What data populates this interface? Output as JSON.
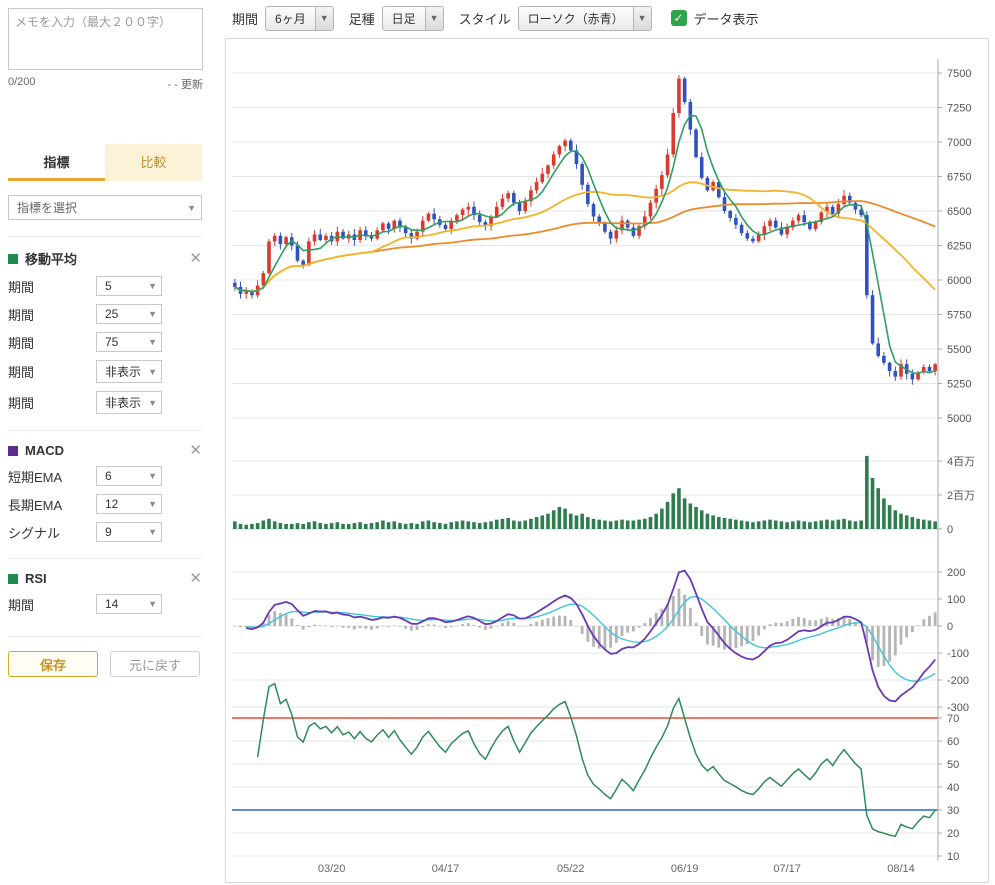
{
  "sidebar": {
    "memo": {
      "placeholder": "メモを入力（最大２００字）",
      "counter": "0/200",
      "update_label": "- - 更新"
    },
    "tabs": [
      {
        "label": "指標",
        "active": true
      },
      {
        "label": "比較",
        "active": false
      }
    ],
    "indicator_select_placeholder": "指標を選択",
    "sections": [
      {
        "name": "移動平均",
        "color": "#1f8a4c",
        "rows": [
          {
            "label": "期間",
            "value": "5"
          },
          {
            "label": "期間",
            "value": "25"
          },
          {
            "label": "期間",
            "value": "75"
          },
          {
            "label": "期間",
            "value": "非表示"
          },
          {
            "label": "期間",
            "value": "非表示"
          }
        ]
      },
      {
        "name": "MACD",
        "color": "#5b2d8e",
        "rows": [
          {
            "label": "短期EMA",
            "value": "6"
          },
          {
            "label": "長期EMA",
            "value": "12"
          },
          {
            "label": "シグナル",
            "value": "9"
          }
        ]
      },
      {
        "name": "RSI",
        "color": "#1f8a4c",
        "rows": [
          {
            "label": "期間",
            "value": "14"
          }
        ]
      }
    ],
    "save_button": "保存",
    "reset_button": "元に戻す"
  },
  "toolbar": {
    "period_label": "期間",
    "period_value": "6ヶ月",
    "type_label": "足種",
    "type_value": "日足",
    "style_label": "スタイル",
    "style_value": "ローソク（赤青）",
    "data_display_label": "データ表示",
    "data_display_checked": true
  },
  "chart_data": {
    "type": "candlestick",
    "panels": [
      "price+moving-averages",
      "volume",
      "macd",
      "rsi"
    ],
    "x_ticks": [
      {
        "label": "03/20",
        "index": 17
      },
      {
        "label": "04/17",
        "index": 37
      },
      {
        "label": "05/22",
        "index": 59
      },
      {
        "label": "06/19",
        "index": 79
      },
      {
        "label": "07/17",
        "index": 97
      },
      {
        "label": "08/14",
        "index": 117
      }
    ],
    "price_axis": {
      "min": 5000,
      "max": 7600,
      "ticks": [
        7500,
        7250,
        7000,
        6750,
        6500,
        6250,
        6000,
        5750,
        5500,
        5250,
        5000
      ]
    },
    "volume_axis_labels": [
      {
        "label": "4百万",
        "value": 4
      },
      {
        "label": "2百万",
        "value": 2
      },
      {
        "label": "0",
        "value": 0
      }
    ],
    "macd_axis_ticks": [
      200,
      100,
      0,
      -100,
      -200,
      -300
    ],
    "rsi_axis_ticks": [
      70,
      60,
      50,
      40,
      30,
      20,
      10
    ],
    "rsi_bands": {
      "upper": 70,
      "lower": 30
    },
    "indicators": {
      "ma_periods": [
        5,
        25,
        75
      ],
      "macd": {
        "fast": 6,
        "slow": 12,
        "signal": 9
      },
      "rsi_period": 14
    },
    "closes": [
      5950,
      5900,
      5920,
      5890,
      5960,
      6050,
      6280,
      6320,
      6260,
      6310,
      6250,
      6140,
      6110,
      6280,
      6330,
      6290,
      6320,
      6280,
      6350,
      6300,
      6330,
      6290,
      6360,
      6320,
      6300,
      6360,
      6410,
      6370,
      6430,
      6380,
      6340,
      6300,
      6350,
      6430,
      6480,
      6440,
      6400,
      6370,
      6430,
      6470,
      6510,
      6530,
      6470,
      6420,
      6390,
      6460,
      6530,
      6590,
      6630,
      6560,
      6500,
      6570,
      6650,
      6710,
      6770,
      6830,
      6910,
      6970,
      7010,
      6940,
      6840,
      6690,
      6550,
      6460,
      6410,
      6350,
      6300,
      6360,
      6430,
      6380,
      6320,
      6390,
      6460,
      6560,
      6660,
      6760,
      6910,
      7210,
      7460,
      7290,
      7090,
      6890,
      6740,
      6650,
      6710,
      6600,
      6500,
      6450,
      6400,
      6340,
      6300,
      6280,
      6330,
      6390,
      6430,
      6380,
      6330,
      6380,
      6430,
      6470,
      6420,
      6370,
      6420,
      6490,
      6530,
      6480,
      6550,
      6610,
      6560,
      6510,
      6470,
      5890,
      5540,
      5450,
      5400,
      5340,
      5300,
      5390,
      5320,
      5280,
      5330,
      5370,
      5340,
      5390
    ],
    "volumes_millions": [
      0.45,
      0.3,
      0.25,
      0.3,
      0.35,
      0.5,
      0.6,
      0.45,
      0.35,
      0.3,
      0.3,
      0.35,
      0.3,
      0.4,
      0.45,
      0.35,
      0.3,
      0.35,
      0.4,
      0.3,
      0.3,
      0.35,
      0.4,
      0.3,
      0.35,
      0.4,
      0.5,
      0.4,
      0.45,
      0.35,
      0.3,
      0.35,
      0.3,
      0.45,
      0.5,
      0.4,
      0.35,
      0.3,
      0.4,
      0.45,
      0.5,
      0.45,
      0.4,
      0.35,
      0.4,
      0.45,
      0.55,
      0.6,
      0.65,
      0.5,
      0.45,
      0.5,
      0.6,
      0.7,
      0.8,
      0.9,
      1.1,
      1.3,
      1.2,
      0.9,
      0.8,
      0.9,
      0.7,
      0.6,
      0.55,
      0.5,
      0.45,
      0.5,
      0.55,
      0.5,
      0.5,
      0.55,
      0.6,
      0.7,
      0.9,
      1.2,
      1.6,
      2.1,
      2.4,
      1.8,
      1.5,
      1.3,
      1.1,
      0.9,
      0.8,
      0.7,
      0.65,
      0.6,
      0.55,
      0.5,
      0.45,
      0.4,
      0.45,
      0.5,
      0.55,
      0.5,
      0.45,
      0.4,
      0.45,
      0.5,
      0.45,
      0.4,
      0.45,
      0.5,
      0.55,
      0.5,
      0.55,
      0.6,
      0.5,
      0.45,
      0.5,
      4.3,
      3.0,
      2.4,
      1.8,
      1.4,
      1.1,
      0.9,
      0.8,
      0.7,
      0.6,
      0.55,
      0.5,
      0.45
    ],
    "colors": {
      "up": "#d93a2b",
      "down": "#3052c0",
      "volume": "#2e7d4f",
      "ma5": "#2f9e5f",
      "ma25": "#f3b32a",
      "ma75": "#ec8b2d",
      "macd": "#6a3ab2",
      "macd_signal": "#3fc6d8",
      "macd_hist": "#b5b5b5",
      "rsi": "#2e8b57",
      "rsi_upper": "#e8482f",
      "rsi_lower": "#2f6bb0",
      "grid": "#e6e6e6",
      "axis": "#aaaaaa",
      "axis_text": "#555555"
    }
  }
}
